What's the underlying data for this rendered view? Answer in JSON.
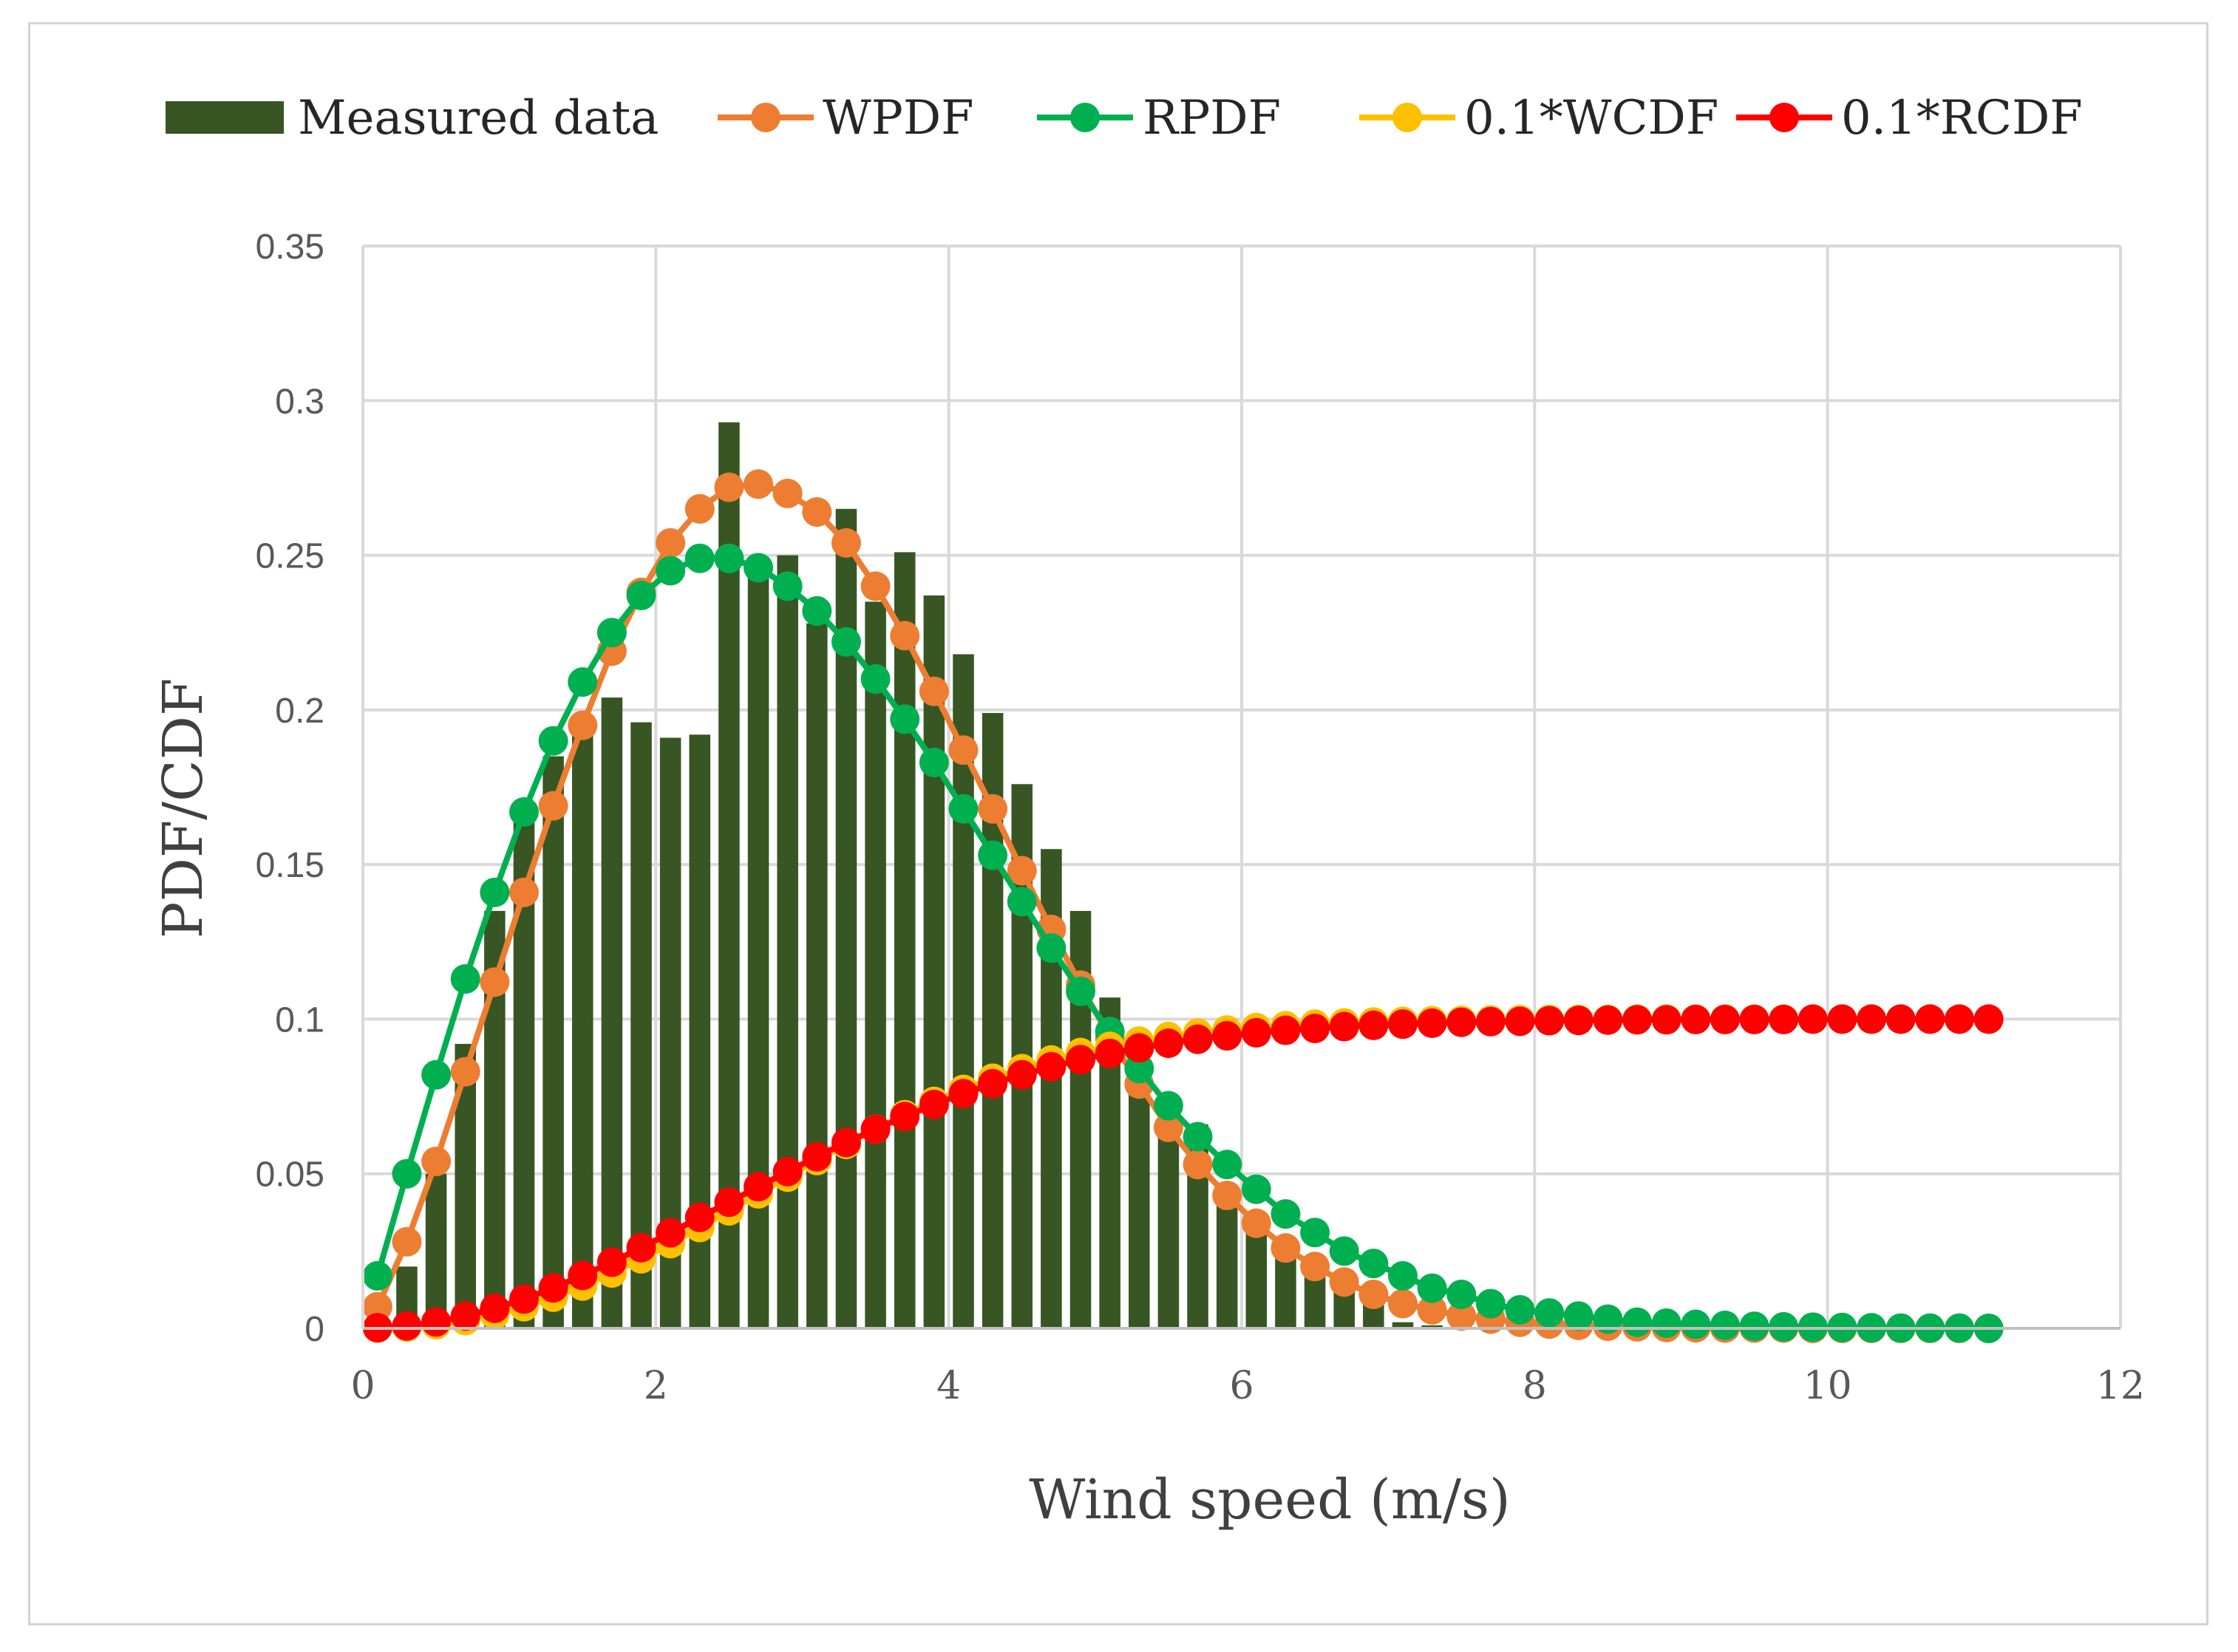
{
  "chart_data": {
    "type": "bar",
    "title": "",
    "xlabel": "Wind speed (m/s)",
    "ylabel": "PDF/CDF",
    "xlim": [
      0,
      12
    ],
    "ylim": [
      0,
      0.35
    ],
    "xticks": [
      0,
      2,
      4,
      6,
      8,
      10,
      12
    ],
    "yticks": [
      0,
      0.05,
      0.1,
      0.15,
      0.2,
      0.25,
      0.3,
      0.35
    ],
    "ytick_labels": [
      "0",
      "0.05",
      "0.1",
      "0.15",
      "0.2",
      "0.25",
      "0.3",
      "0.35"
    ],
    "grid": true,
    "legend_position": "top",
    "bar_series": {
      "name": "Measured data",
      "color": "#375623",
      "x": [
        0.3,
        0.5,
        0.7,
        0.9,
        1.1,
        1.3,
        1.5,
        1.7,
        1.9,
        2.1,
        2.3,
        2.5,
        2.7,
        2.9,
        3.1,
        3.3,
        3.5,
        3.7,
        3.9,
        4.1,
        4.3,
        4.5,
        4.7,
        4.9,
        5.1,
        5.3,
        5.5,
        5.7,
        5.9,
        6.1,
        6.3,
        6.5,
        6.7,
        6.9,
        7.1,
        7.3
      ],
      "values": [
        0.02,
        0.05,
        0.092,
        0.135,
        0.17,
        0.185,
        0.192,
        0.204,
        0.196,
        0.191,
        0.192,
        0.293,
        0.247,
        0.25,
        0.228,
        0.265,
        0.235,
        0.251,
        0.237,
        0.218,
        0.199,
        0.176,
        0.155,
        0.135,
        0.107,
        0.085,
        0.072,
        0.066,
        0.045,
        0.032,
        0.023,
        0.02,
        0.015,
        0.011,
        0.002,
        0.001
      ]
    },
    "x": [
      0.1,
      0.3,
      0.5,
      0.7,
      0.9,
      1.1,
      1.3,
      1.5,
      1.7,
      1.9,
      2.1,
      2.3,
      2.5,
      2.7,
      2.9,
      3.1,
      3.3,
      3.5,
      3.7,
      3.9,
      4.1,
      4.3,
      4.5,
      4.7,
      4.9,
      5.1,
      5.3,
      5.5,
      5.7,
      5.9,
      6.1,
      6.3,
      6.5,
      6.7,
      6.9,
      7.1,
      7.3,
      7.5,
      7.7,
      7.9,
      8.1,
      8.3,
      8.5,
      8.7,
      8.9,
      9.1,
      9.3,
      9.5,
      9.7,
      9.9,
      10.1,
      10.3,
      10.5,
      10.7,
      10.9,
      11.1
    ],
    "series": [
      {
        "name": "WPDF",
        "color": "#ED7D31",
        "values": [
          0.007,
          0.028,
          0.054,
          0.083,
          0.112,
          0.141,
          0.169,
          0.195,
          0.219,
          0.238,
          0.254,
          0.265,
          0.272,
          0.273,
          0.27,
          0.264,
          0.254,
          0.24,
          0.224,
          0.206,
          0.187,
          0.168,
          0.148,
          0.129,
          0.111,
          0.094,
          0.079,
          0.065,
          0.053,
          0.043,
          0.034,
          0.026,
          0.02,
          0.015,
          0.011,
          0.008,
          0.006,
          0.004,
          0.003,
          0.002,
          0.0014,
          0.001,
          0.0007,
          0.0005,
          0.0003,
          0.0002,
          0.0001,
          0.0001,
          0.0001,
          0,
          0,
          0,
          0,
          0,
          0,
          0
        ]
      },
      {
        "name": "RPDF",
        "color": "#00B050",
        "values": [
          0.017,
          0.05,
          0.082,
          0.113,
          0.141,
          0.167,
          0.19,
          0.209,
          0.225,
          0.237,
          0.245,
          0.249,
          0.249,
          0.246,
          0.24,
          0.232,
          0.222,
          0.21,
          0.197,
          0.183,
          0.168,
          0.153,
          0.138,
          0.123,
          0.109,
          0.096,
          0.084,
          0.072,
          0.062,
          0.053,
          0.045,
          0.037,
          0.031,
          0.025,
          0.021,
          0.017,
          0.013,
          0.011,
          0.008,
          0.006,
          0.005,
          0.004,
          0.003,
          0.002,
          0.0017,
          0.0013,
          0.001,
          0.0007,
          0.0005,
          0.0004,
          0.0003,
          0.0002,
          0.0001,
          0.0001,
          0.0001,
          0
        ]
      },
      {
        "name": "0.1*WCDF",
        "color": "#FFC000",
        "values": [
          0.0001,
          0.0004,
          0.0012,
          0.0025,
          0.0044,
          0.007,
          0.0101,
          0.0137,
          0.0179,
          0.0225,
          0.0274,
          0.0326,
          0.038,
          0.0435,
          0.0489,
          0.0543,
          0.0595,
          0.0644,
          0.0691,
          0.0734,
          0.0773,
          0.0809,
          0.084,
          0.0868,
          0.0892,
          0.0912,
          0.0929,
          0.0944,
          0.0955,
          0.0965,
          0.0973,
          0.0979,
          0.0984,
          0.0988,
          0.0991,
          0.0993,
          0.0995,
          0.0996,
          0.0997,
          0.0998,
          0.0999,
          0.0999,
          0.0999,
          0.1,
          0.1,
          0.1,
          0.1,
          0.1,
          0.1,
          0.1,
          0.1,
          0.1,
          0.1,
          0.1,
          0.1,
          0.1
        ]
      },
      {
        "name": "0.1*RCDF",
        "color": "#FF0000",
        "values": [
          0.0002,
          0.0008,
          0.0021,
          0.004,
          0.0065,
          0.0095,
          0.0131,
          0.0171,
          0.0214,
          0.0261,
          0.0309,
          0.0359,
          0.0408,
          0.0458,
          0.0507,
          0.0555,
          0.0601,
          0.0644,
          0.0685,
          0.0724,
          0.0759,
          0.0791,
          0.082,
          0.0846,
          0.0869,
          0.0889,
          0.0907,
          0.0922,
          0.0935,
          0.0946,
          0.0956,
          0.0964,
          0.097,
          0.0976,
          0.098,
          0.0984,
          0.0987,
          0.099,
          0.0992,
          0.0993,
          0.0995,
          0.0996,
          0.0997,
          0.0998,
          0.0998,
          0.0999,
          0.0999,
          0.0999,
          0.0999,
          0.1,
          0.1,
          0.1,
          0.1,
          0.1,
          0.1,
          0.1
        ]
      }
    ]
  }
}
